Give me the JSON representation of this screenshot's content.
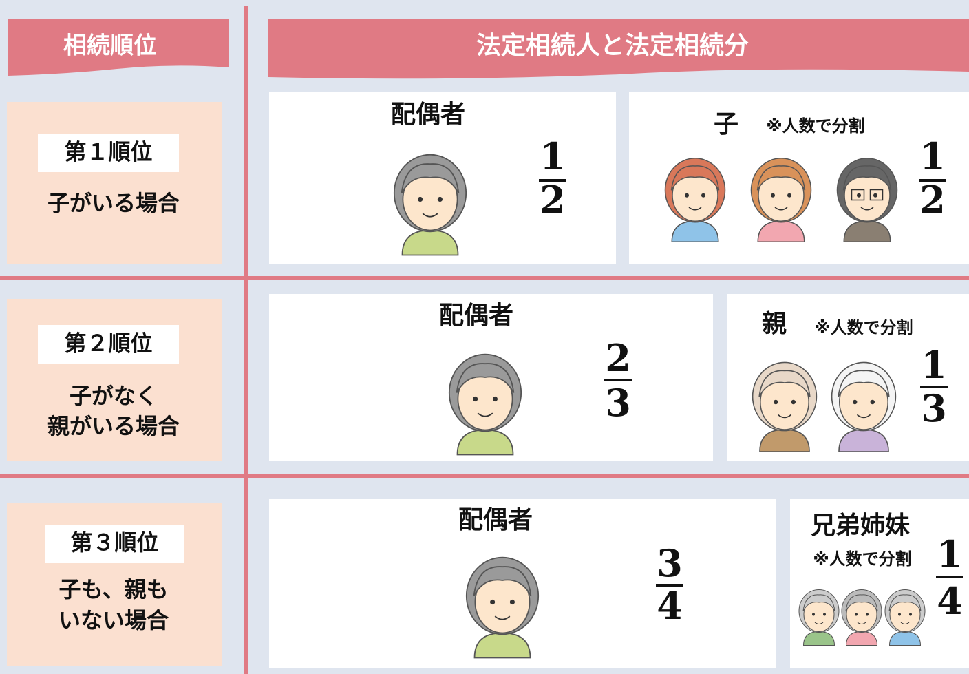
{
  "header": {
    "rank": "相続順位",
    "heirs": "法定相続人と法定相続分"
  },
  "rows": [
    {
      "rank": "第１順位",
      "condition": [
        "子がいる場合"
      ],
      "spouse": {
        "label": "配偶者",
        "share": {
          "numerator": 1,
          "denominator": 2
        }
      },
      "other": {
        "label": "子",
        "note": "※人数で分割",
        "share": {
          "numerator": 1,
          "denominator": 2
        }
      }
    },
    {
      "rank": "第２順位",
      "condition": [
        "子がなく",
        "親がいる場合"
      ],
      "spouse": {
        "label": "配偶者",
        "share": {
          "numerator": 2,
          "denominator": 3
        }
      },
      "other": {
        "label": "親",
        "note": "※人数で分割",
        "share": {
          "numerator": 1,
          "denominator": 3
        }
      }
    },
    {
      "rank": "第３順位",
      "condition": [
        "子も、親も",
        "いない場合"
      ],
      "spouse": {
        "label": "配偶者",
        "share": {
          "numerator": 3,
          "denominator": 4
        }
      },
      "other": {
        "label": "兄弟姉妹",
        "note": "※人数で分割",
        "share": {
          "numerator": 1,
          "denominator": 4
        }
      }
    }
  ]
}
